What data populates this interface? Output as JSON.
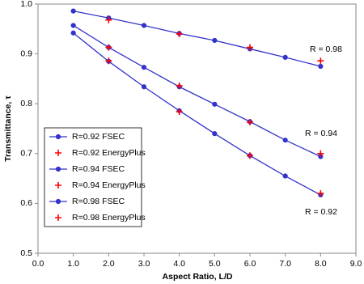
{
  "chart_data": {
    "type": "line",
    "xlabel": "Aspect Ratio, L/D",
    "ylabel": "Transmittance, τ",
    "xlim": [
      0,
      9
    ],
    "xticks": [
      {
        "value": 0,
        "label": "0.0"
      },
      {
        "value": 1,
        "label": "1.0"
      },
      {
        "value": 2,
        "label": "2.0"
      },
      {
        "value": 3,
        "label": "3.0"
      },
      {
        "value": 4,
        "label": "4.0"
      },
      {
        "value": 5,
        "label": "5.0"
      },
      {
        "value": 6,
        "label": "6.0"
      },
      {
        "value": 7,
        "label": "7.0"
      },
      {
        "value": 8,
        "label": "8.0"
      },
      {
        "value": 9,
        "label": "9.0"
      }
    ],
    "ylim": [
      0.5,
      1
    ],
    "yticks": [
      0.5,
      0.6,
      0.7,
      0.8,
      0.9,
      {
        "value": 1,
        "label": "1.0"
      }
    ],
    "grid": false,
    "legend": "lower left",
    "annotations": [
      "R = 0.98",
      "R = 0.94",
      "R = 0.92"
    ],
    "series": [
      {
        "name": "R=0.92 FSEC",
        "color": "#3333cc",
        "marker": "circle",
        "line": true,
        "x": [
          1,
          2,
          3,
          4,
          5,
          6,
          7,
          8
        ],
        "values": [
          0.942,
          0.885,
          0.834,
          0.786,
          0.74,
          0.696,
          0.655,
          0.617
        ]
      },
      {
        "name": "R=0.92 EnergyPlus",
        "color": "#ff0000",
        "marker": "plus",
        "line": false,
        "x": [
          2,
          4,
          6,
          8
        ],
        "values": [
          0.886,
          0.784,
          0.696,
          0.62
        ]
      },
      {
        "name": "R=0.94 FSEC",
        "color": "#3333cc",
        "marker": "circle",
        "line": true,
        "x": [
          1,
          2,
          3,
          4,
          5,
          6,
          7,
          8
        ],
        "values": [
          0.957,
          0.913,
          0.873,
          0.834,
          0.799,
          0.764,
          0.727,
          0.694
        ]
      },
      {
        "name": "R=0.94 EnergyPlus",
        "color": "#ff0000",
        "marker": "plus",
        "line": false,
        "x": [
          2,
          4,
          6,
          8
        ],
        "values": [
          0.913,
          0.836,
          0.763,
          0.7
        ]
      },
      {
        "name": "R=0.98 FSEC",
        "color": "#3333cc",
        "marker": "circle",
        "line": true,
        "x": [
          1,
          2,
          3,
          4,
          5,
          6,
          7,
          8
        ],
        "values": [
          0.986,
          0.972,
          0.957,
          0.941,
          0.927,
          0.91,
          0.893,
          0.875
        ]
      },
      {
        "name": "R=0.98 EnergyPlus",
        "color": "#ff0000",
        "marker": "plus",
        "line": false,
        "x": [
          2,
          4,
          6,
          8
        ],
        "values": [
          0.968,
          0.94,
          0.913,
          0.886
        ]
      }
    ]
  }
}
